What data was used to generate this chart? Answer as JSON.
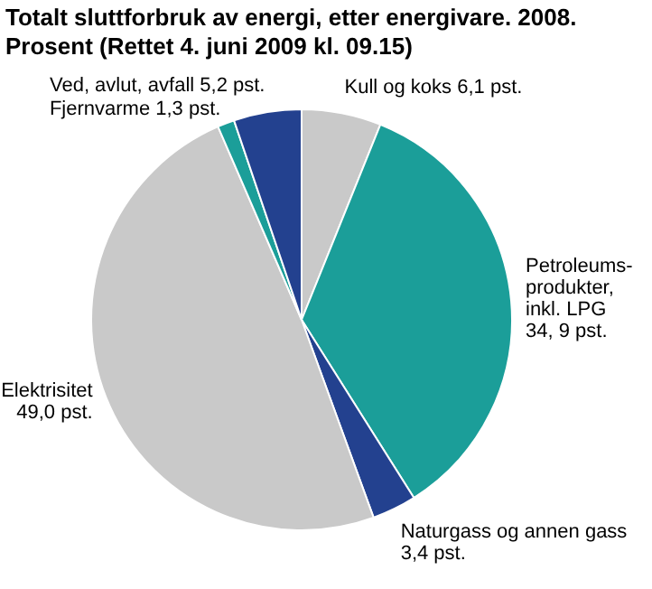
{
  "chart_data": {
    "type": "pie",
    "title": "Totalt sluttforbruk av energi, etter energivare. 2008. Prosent (Rettet 4. juni 2009 kl. 09.15)",
    "categories": [
      "Kull og koks 6,1 pst.",
      "Petroleums-\nprodukter,\ninkl. LPG\n34, 9 pst.",
      "Naturgass og annen gass\n3,4 pst.",
      "Elektrisitet\n49,0 pst.",
      "Fjernvarme 1,3 pst.",
      "Ved, avlut, avfall 5,2 pst."
    ],
    "values": [
      6.1,
      34.9,
      3.4,
      49.0,
      1.3,
      5.2
    ],
    "colors": [
      "#c9c9c9",
      "#1b9e99",
      "#23418f",
      "#c9c9c9",
      "#1b9e99",
      "#23418f"
    ],
    "legend": false
  }
}
